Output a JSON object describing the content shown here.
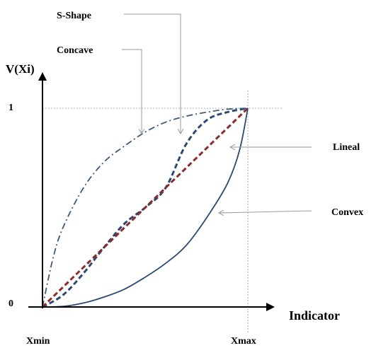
{
  "chart_data": {
    "type": "line",
    "title": "",
    "xlabel": "Indicator",
    "ylabel": "V(Xi)",
    "x_ticks": [
      {
        "x": 0,
        "label": "Xmin"
      },
      {
        "x": 1,
        "label": "Xmax"
      }
    ],
    "y_ticks": [
      {
        "y": 0,
        "label": "0"
      },
      {
        "y": 1,
        "label": "1"
      }
    ],
    "xlim": [
      0,
      1
    ],
    "ylim": [
      0,
      1
    ],
    "grid": false,
    "reference_lines": [
      "x = Xmax",
      "y = 1"
    ],
    "series": [
      {
        "name": "S-Shape",
        "style": "dashed",
        "color": "#2a4a73",
        "points": [
          [
            0,
            0
          ],
          [
            0.1,
            0.06
          ],
          [
            0.2,
            0.17
          ],
          [
            0.3,
            0.3
          ],
          [
            0.4,
            0.42
          ],
          [
            0.5,
            0.5
          ],
          [
            0.6,
            0.6
          ],
          [
            0.7,
            0.82
          ],
          [
            0.8,
            0.94
          ],
          [
            0.9,
            0.98
          ],
          [
            1,
            1
          ]
        ]
      },
      {
        "name": "Concave",
        "style": "dash-dot",
        "color": "#3b5a82",
        "points": [
          [
            0,
            0
          ],
          [
            0.05,
            0.24
          ],
          [
            0.1,
            0.4
          ],
          [
            0.2,
            0.6
          ],
          [
            0.3,
            0.73
          ],
          [
            0.4,
            0.81
          ],
          [
            0.5,
            0.88
          ],
          [
            0.6,
            0.93
          ],
          [
            0.7,
            0.96
          ],
          [
            0.8,
            0.98
          ],
          [
            0.9,
            0.995
          ],
          [
            1,
            1
          ]
        ]
      },
      {
        "name": "Lineal",
        "style": "dashed",
        "color": "#8b2c2c",
        "points": [
          [
            0,
            0
          ],
          [
            1,
            1
          ]
        ]
      },
      {
        "name": "Convex",
        "style": "solid",
        "color": "#2a4a73",
        "points": [
          [
            0,
            0
          ],
          [
            0.1,
            0.003
          ],
          [
            0.2,
            0.02
          ],
          [
            0.3,
            0.05
          ],
          [
            0.4,
            0.09
          ],
          [
            0.5,
            0.15
          ],
          [
            0.6,
            0.22
          ],
          [
            0.7,
            0.31
          ],
          [
            0.8,
            0.45
          ],
          [
            0.9,
            0.62
          ],
          [
            0.96,
            0.79
          ],
          [
            1,
            1
          ]
        ]
      }
    ],
    "annotations": [
      {
        "text": "S-Shape",
        "points_to": "S-Shape"
      },
      {
        "text": "Concave",
        "points_to": "Concave"
      },
      {
        "text": "Lineal",
        "points_to": "Lineal"
      },
      {
        "text": "Convex",
        "points_to": "Convex"
      }
    ]
  }
}
